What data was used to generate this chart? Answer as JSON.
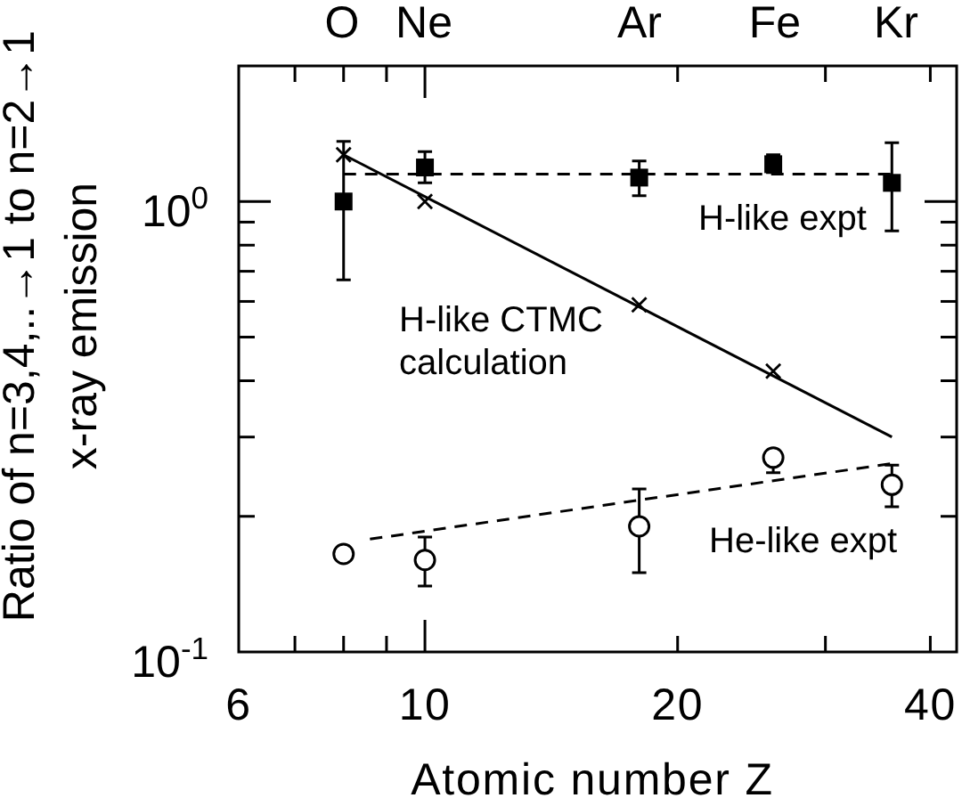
{
  "chart_data": {
    "type": "scatter",
    "xlabel": "Atomic number Z",
    "ylabel": "Ratio of n=3,4,..→1 to n=2→1\nx-ray emission",
    "log": "xy",
    "xlim": [
      6,
      43
    ],
    "ylim": [
      0.1,
      2
    ],
    "xticks": [
      6,
      {
        "value": 7,
        "label": null
      },
      {
        "value": 8,
        "label": null
      },
      {
        "value": 9,
        "label": null
      },
      10,
      20,
      {
        "value": 30,
        "label": null
      },
      40
    ],
    "yticks": [
      {
        "value": 0.1,
        "label": "10$^{-1}$"
      },
      {
        "value": 0.2,
        "label": null
      },
      {
        "value": 0.3,
        "label": null
      },
      {
        "value": 0.4,
        "label": null
      },
      {
        "value": 0.5,
        "label": null
      },
      {
        "value": 0.6,
        "label": null
      },
      {
        "value": 0.7,
        "label": null
      },
      {
        "value": 0.8,
        "label": null
      },
      {
        "value": 0.9,
        "label": null
      },
      {
        "value": 1,
        "label": "10$^{0}$"
      }
    ],
    "series": [
      {
        "name": "H-like expt",
        "marker": "square",
        "color": "#000000",
        "x": [
          8,
          10,
          18,
          26,
          36
        ],
        "values": [
          1.0,
          1.19,
          1.13,
          1.21,
          1.1
        ],
        "errors": [
          [
            0.67,
            1.36
          ],
          [
            1.1,
            1.29
          ],
          [
            1.03,
            1.23
          ],
          [
            1.16,
            1.27
          ],
          [
            0.86,
            1.35
          ]
        ]
      },
      {
        "type": "line",
        "line_style": "dashed",
        "color": "#000000",
        "x": [
          8,
          36
        ],
        "values": [
          1.15,
          1.15
        ]
      },
      {
        "name": "H-like CTMC\ncalculation",
        "marker": "cross",
        "color": "#000000",
        "x": [
          8,
          10,
          18,
          26
        ],
        "values": [
          1.27,
          1.0,
          0.59,
          0.42
        ]
      },
      {
        "type": "line",
        "line_style": "solid",
        "color": "#000000",
        "x": [
          8,
          36
        ],
        "values": [
          1.27,
          0.3
        ]
      },
      {
        "name": "He-like expt",
        "marker": "circle",
        "color": "#000000",
        "x": [
          8,
          10,
          18,
          26,
          36
        ],
        "values": [
          0.165,
          0.16,
          0.19,
          0.27,
          0.235
        ],
        "errors": [
          null,
          [
            0.14,
            0.18
          ],
          [
            0.15,
            0.23
          ],
          [
            0.25,
            0.28
          ],
          [
            0.21,
            0.26
          ]
        ]
      },
      {
        "type": "line",
        "line_style": "dashed",
        "color": "#000000",
        "x": [
          8.6,
          36
        ],
        "values": [
          0.178,
          0.262
        ]
      }
    ],
    "annotations": [
      "O",
      "Ne",
      "Ar",
      "Fe",
      "Kr"
    ]
  }
}
